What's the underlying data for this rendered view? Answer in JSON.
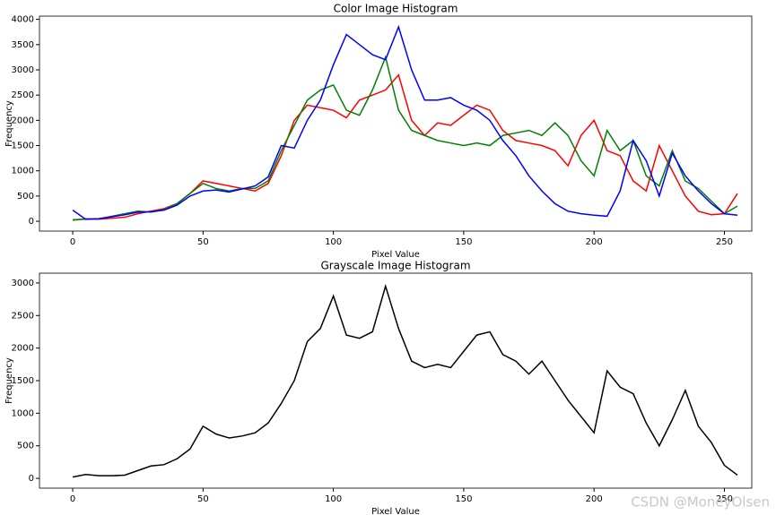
{
  "chart_data": [
    {
      "type": "line",
      "title": "Color Image Histogram",
      "xlabel": "Pixel Value",
      "ylabel": "Frequency",
      "x": [
        0,
        5,
        10,
        15,
        20,
        25,
        30,
        35,
        40,
        45,
        50,
        55,
        60,
        65,
        70,
        75,
        80,
        85,
        90,
        95,
        100,
        105,
        110,
        115,
        120,
        125,
        130,
        135,
        140,
        145,
        150,
        155,
        160,
        165,
        170,
        175,
        180,
        185,
        190,
        195,
        200,
        205,
        210,
        215,
        220,
        225,
        230,
        235,
        240,
        245,
        250,
        255
      ],
      "series": [
        {
          "color": "#0000ff",
          "values": [
            220,
            40,
            50,
            90,
            130,
            180,
            190,
            220,
            320,
            500,
            600,
            620,
            580,
            640,
            700,
            880,
            1500,
            1450,
            2000,
            2400,
            3100,
            3700,
            3500,
            3300,
            3200,
            3850,
            3000,
            2400,
            2400,
            2450,
            2300,
            2200,
            2000,
            1600,
            1300,
            900,
            600,
            350,
            200,
            150,
            120,
            100,
            600,
            1600,
            1200,
            500,
            1350,
            900,
            600,
            350,
            150,
            120
          ]
        },
        {
          "color": "#008000",
          "values": [
            30,
            40,
            50,
            100,
            150,
            200,
            180,
            230,
            350,
            550,
            750,
            650,
            600,
            650,
            650,
            800,
            1400,
            1900,
            2400,
            2600,
            2700,
            2200,
            2100,
            2600,
            3250,
            2200,
            1800,
            1700,
            1600,
            1550,
            1500,
            1550,
            1500,
            1700,
            1750,
            1800,
            1700,
            1950,
            1700,
            1200,
            900,
            1800,
            1400,
            1600,
            900,
            700,
            1400,
            800,
            650,
            400,
            150,
            300
          ]
        },
        {
          "color": "#ff0000",
          "values": [
            20,
            50,
            40,
            60,
            80,
            150,
            200,
            250,
            350,
            550,
            800,
            750,
            700,
            650,
            600,
            750,
            1300,
            2000,
            2300,
            2250,
            2200,
            2050,
            2400,
            2500,
            2600,
            2900,
            2000,
            1700,
            1950,
            1900,
            2100,
            2300,
            2200,
            1800,
            1600,
            1550,
            1500,
            1400,
            1100,
            1700,
            2000,
            1400,
            1300,
            800,
            600,
            1500,
            1000,
            500,
            200,
            130,
            150,
            550
          ]
        }
      ],
      "xlim": [
        -12.75,
        260.5
      ],
      "ylim": [
        -194,
        4064
      ],
      "xticks": [
        0,
        50,
        100,
        150,
        200,
        250
      ],
      "yticks": [
        0,
        500,
        1000,
        1500,
        2000,
        2500,
        3000,
        3500,
        4000
      ]
    },
    {
      "type": "line",
      "title": "Grayscale Image Histogram",
      "xlabel": "Pixel Value",
      "ylabel": "Frequency",
      "x": [
        0,
        5,
        10,
        15,
        20,
        25,
        30,
        35,
        40,
        45,
        50,
        55,
        60,
        65,
        70,
        75,
        80,
        85,
        90,
        95,
        100,
        105,
        110,
        115,
        120,
        125,
        130,
        135,
        140,
        145,
        150,
        155,
        160,
        165,
        170,
        175,
        180,
        185,
        190,
        195,
        200,
        205,
        210,
        215,
        220,
        225,
        230,
        235,
        240,
        245,
        250,
        255
      ],
      "series": [
        {
          "color": "#000000",
          "values": [
            20,
            60,
            40,
            40,
            50,
            120,
            190,
            210,
            300,
            450,
            800,
            680,
            620,
            650,
            700,
            850,
            1150,
            1500,
            2100,
            2300,
            2800,
            2200,
            2150,
            2250,
            2950,
            2300,
            1800,
            1700,
            1750,
            1700,
            1950,
            2200,
            2250,
            1900,
            1800,
            1600,
            1800,
            1500,
            1200,
            950,
            700,
            1650,
            1400,
            1300,
            850,
            500,
            900,
            1350,
            800,
            550,
            200,
            50
          ]
        }
      ],
      "xlim": [
        -12.75,
        260.5
      ],
      "ylim": [
        -150,
        3150
      ],
      "xticks": [
        0,
        50,
        100,
        150,
        200,
        250
      ],
      "yticks": [
        0,
        500,
        1000,
        1500,
        2000,
        2500,
        3000
      ]
    }
  ],
  "watermark": "CSDN @MoneyOlsen"
}
